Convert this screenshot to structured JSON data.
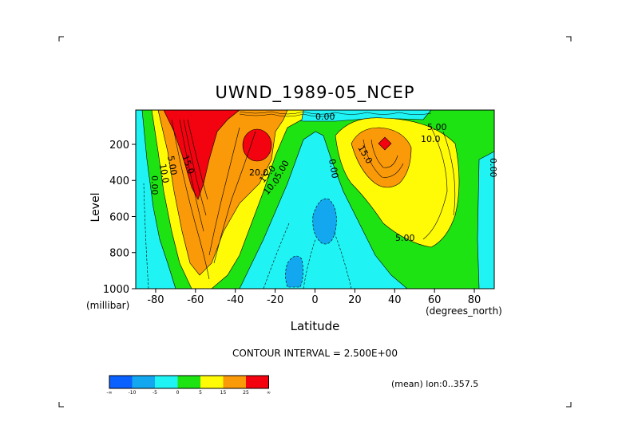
{
  "chart_data": {
    "type": "contour",
    "title": "UWND_1989-05_NCEP",
    "xlabel": "Latitude",
    "ylabel": "Level",
    "x_units": "(degrees_north)",
    "y_units": "(millibar)",
    "xlim": [
      -90,
      90
    ],
    "ylim": [
      1000,
      10
    ],
    "x_ticks": [
      -80,
      -60,
      -40,
      -20,
      0,
      20,
      40,
      60,
      80
    ],
    "y_ticks": [
      200,
      400,
      600,
      800,
      1000
    ],
    "contour_interval_text": "CONTOUR INTERVAL = 2.500E+00",
    "colorbar": {
      "labels": [
        "-∞",
        "-10",
        "-5",
        "0",
        "5",
        "15",
        "25",
        "∞"
      ],
      "colors": [
        "#0b61ff",
        "#12a7ee",
        "#1ff3f4",
        "#1de313",
        "#fffb06",
        "#fb9a08",
        "#f3030f"
      ]
    },
    "contour_labels": [
      "5.00",
      "10.0",
      "15.0",
      "20.0",
      "15.0",
      "10.0",
      "5.00",
      "0.00",
      "0.00",
      "0.00",
      "5.00",
      "10.0",
      "5.00",
      "15.0",
      "0.00"
    ],
    "max_centers": [
      {
        "lat": -30,
        "level": 200
      },
      {
        "lat": 35,
        "level": 200
      }
    ],
    "annotation": "(mean) lon:0..357.5"
  }
}
